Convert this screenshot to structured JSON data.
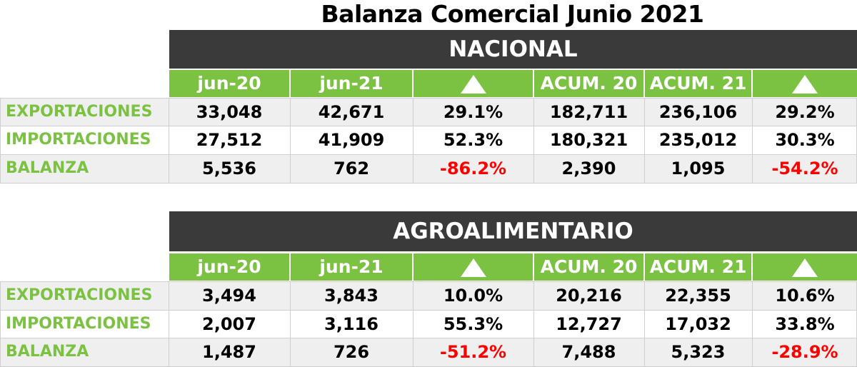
{
  "title": "Balanza Comercial Junio 2021",
  "colors": {
    "green": "#7cc242",
    "dark": "#3a3a3a",
    "negative": "#ff0000"
  },
  "tables": [
    {
      "name": "NACIONAL",
      "headers": [
        "jun-20",
        "jun-21",
        "△",
        "ACUM. 20",
        "ACUM. 21",
        "△"
      ],
      "rows": [
        {
          "label": "EXPORTACIONES",
          "values": [
            "33,048",
            "42,671",
            "29.1%",
            "182,711",
            "236,106",
            "29.2%"
          ]
        },
        {
          "label": "IMPORTACIONES",
          "values": [
            "27,512",
            "41,909",
            "52.3%",
            "180,321",
            "235,012",
            "30.3%"
          ]
        },
        {
          "label": "BALANZA",
          "values": [
            "5,536",
            "762",
            "-86.2%",
            "2,390",
            "1,095",
            "-54.2%"
          ]
        }
      ]
    },
    {
      "name": "AGROALIMENTARIO",
      "headers": [
        "jun-20",
        "jun-21",
        "△",
        "ACUM. 20",
        "ACUM. 21",
        "△"
      ],
      "rows": [
        {
          "label": "EXPORTACIONES",
          "values": [
            "3,494",
            "3,843",
            "10.0%",
            "20,216",
            "22,355",
            "10.6%"
          ]
        },
        {
          "label": "IMPORTACIONES",
          "values": [
            "2,007",
            "3,116",
            "55.3%",
            "12,727",
            "17,032",
            "33.8%"
          ]
        },
        {
          "label": "BALANZA",
          "values": [
            "1,487",
            "726",
            "-51.2%",
            "7,488",
            "5,323",
            "-28.9%"
          ]
        }
      ]
    }
  ]
}
